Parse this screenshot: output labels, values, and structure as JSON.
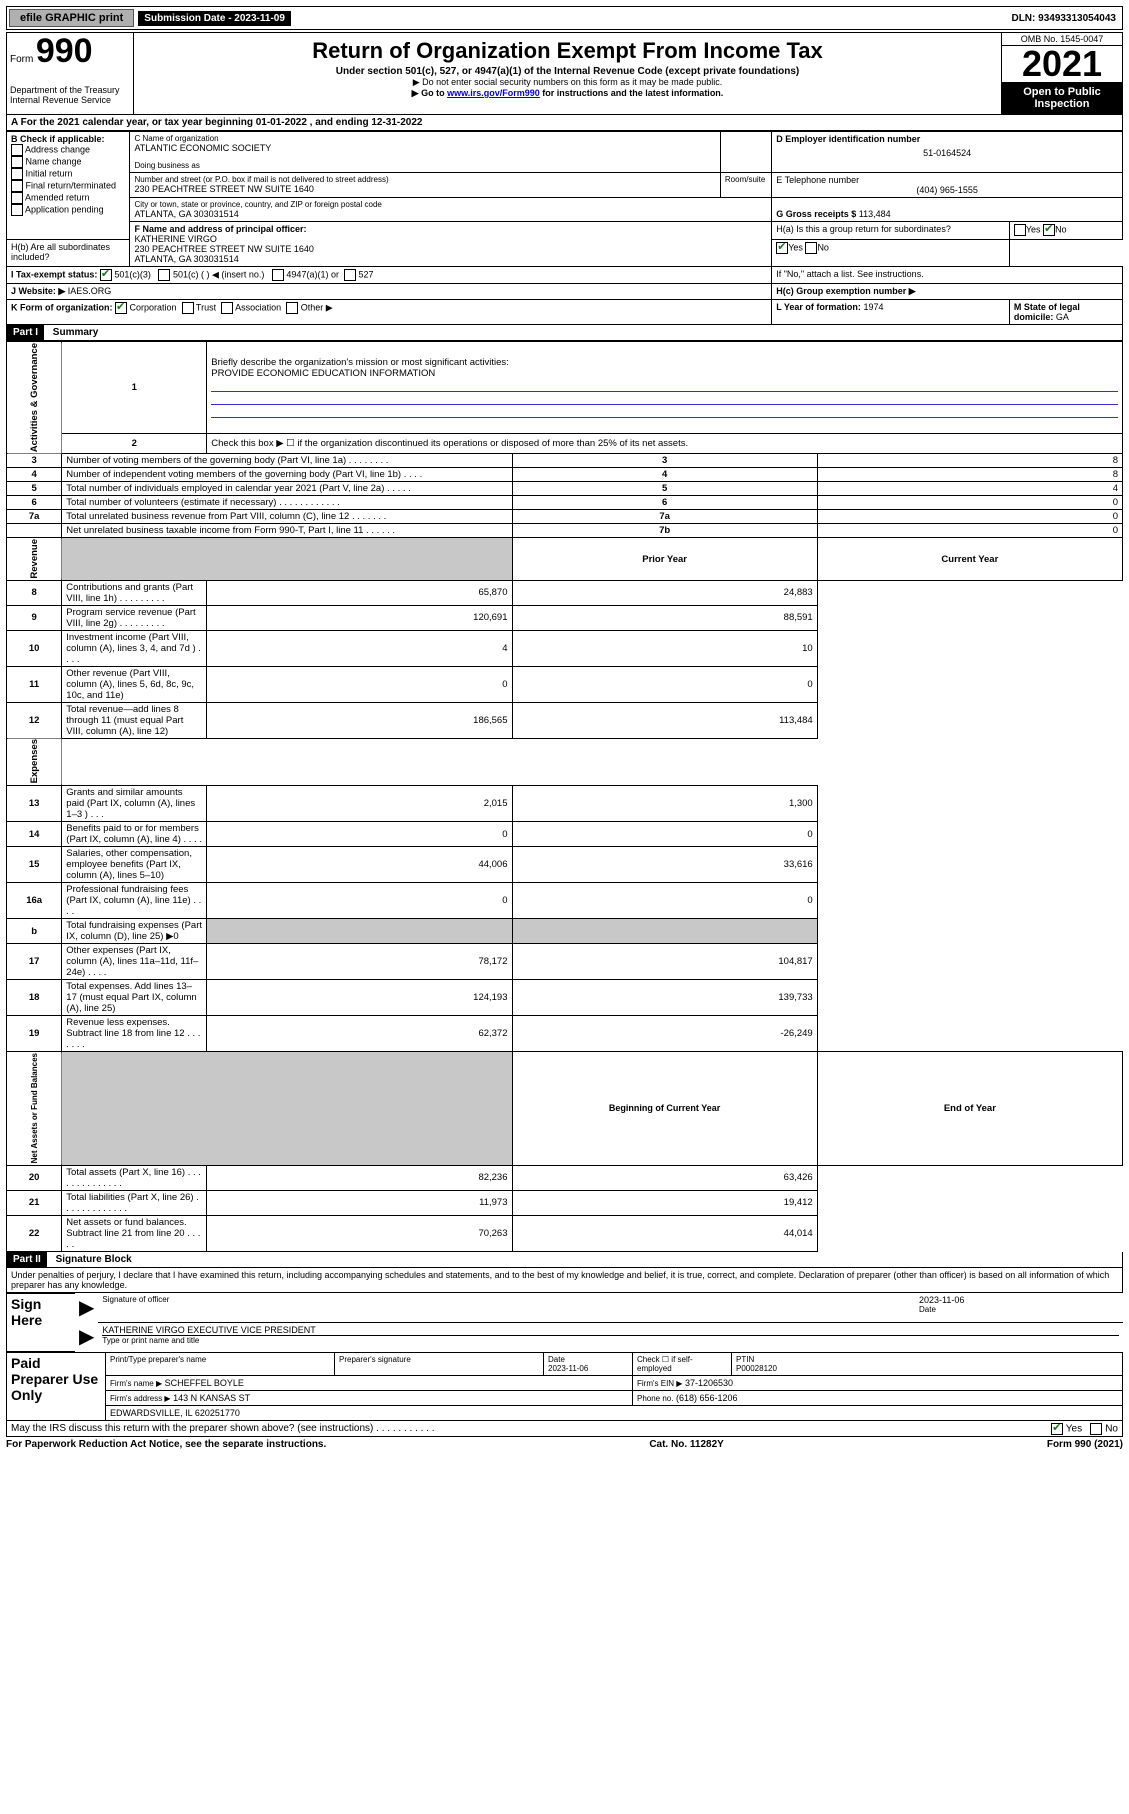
{
  "topbar": {
    "efile": "efile GRAPHIC print",
    "submission_label": "Submission Date - 2023-11-09",
    "dln": "DLN: 93493313054043"
  },
  "header": {
    "form_word": "Form",
    "form_num": "990",
    "dept": "Department of the Treasury",
    "irs": "Internal Revenue Service",
    "title": "Return of Organization Exempt From Income Tax",
    "sub": "Under section 501(c), 527, or 4947(a)(1) of the Internal Revenue Code (except private foundations)",
    "ssn": "▶ Do not enter social security numbers on this form as it may be made public.",
    "goto_pre": "▶ Go to ",
    "goto_link": "www.irs.gov/Form990",
    "goto_post": " for instructions and the latest information.",
    "omb": "OMB No. 1545-0047",
    "year": "2021",
    "open": "Open to Public Inspection"
  },
  "lineA": "For the 2021 calendar year, or tax year beginning 01-01-2022 , and ending 12-31-2022",
  "boxB": {
    "label": "B Check if applicable:",
    "opts": [
      "Address change",
      "Name change",
      "Initial return",
      "Final return/terminated",
      "Amended return",
      "Application pending"
    ]
  },
  "boxC": {
    "name_label": "C Name of organization",
    "name": "ATLANTIC ECONOMIC SOCIETY",
    "dba_label": "Doing business as",
    "addr_label": "Number and street (or P.O. box if mail is not delivered to street address)",
    "room_label": "Room/suite",
    "addr": "230 PEACHTREE STREET NW SUITE 1640",
    "city_label": "City or town, state or province, country, and ZIP or foreign postal code",
    "city": "ATLANTA, GA  303031514"
  },
  "boxD": {
    "label": "D Employer identification number",
    "value": "51-0164524"
  },
  "boxE": {
    "label": "E Telephone number",
    "value": "(404) 965-1555"
  },
  "boxG": {
    "label": "G Gross receipts $",
    "value": "113,484"
  },
  "boxF": {
    "label": "F Name and address of principal officer:",
    "name": "KATHERINE VIRGO",
    "addr1": "230 PEACHTREE STREET NW SUITE 1640",
    "addr2": "ATLANTA, GA  303031514"
  },
  "boxH": {
    "a": "H(a) Is this a group return for subordinates?",
    "a_yes": "Yes",
    "a_no": "No",
    "b": "H(b) Are all subordinates included?",
    "b_note": "If \"No,\" attach a list. See instructions.",
    "c": "H(c) Group exemption number ▶"
  },
  "boxI": {
    "label": "I    Tax-exempt status:",
    "c3": "501(c)(3)",
    "c": "501(c) (    ) ◀ (insert no.)",
    "a1": "4947(a)(1) or",
    "s527": "527"
  },
  "boxJ": {
    "label": "J    Website: ▶",
    "value": "IAES.ORG"
  },
  "boxK": {
    "label": "K Form of organization:",
    "opts": [
      "Corporation",
      "Trust",
      "Association",
      "Other ▶"
    ]
  },
  "boxL": {
    "label": "L Year of formation:",
    "value": "1974"
  },
  "boxM": {
    "label": "M State of legal domicile:",
    "value": "GA"
  },
  "partI": {
    "head": "Part I",
    "title": "Summary",
    "q1": "Briefly describe the organization's mission or most significant activities:",
    "q1_val": "PROVIDE ECONOMIC EDUCATION INFORMATION",
    "q2": "Check this box ▶ ☐ if the organization discontinued its operations or disposed of more than 25% of its net assets.",
    "gov_label": "Activities & Governance",
    "rev_label": "Revenue",
    "exp_label": "Expenses",
    "net_label": "Net Assets or Fund Balances",
    "col_prior": "Prior Year",
    "col_curr": "Current Year",
    "col_boy": "Beginning of Current Year",
    "col_eoy": "End of Year",
    "rows_gov": [
      {
        "n": "3",
        "desc": "Number of voting members of the governing body (Part VI, line 1a)  .    .    .    .    .    .    .    .",
        "num": "3",
        "v": "8"
      },
      {
        "n": "4",
        "desc": "Number of independent voting members of the governing body (Part VI, line 1b)   .    .    .    .",
        "num": "4",
        "v": "8"
      },
      {
        "n": "5",
        "desc": "Total number of individuals employed in calendar year 2021 (Part V, line 2a)    .    .    .    .    .",
        "num": "5",
        "v": "4"
      },
      {
        "n": "6",
        "desc": "Total number of volunteers (estimate if necessary)   .    .    .    .    .    .    .    .    .    .    .    .",
        "num": "6",
        "v": "0"
      },
      {
        "n": "7a",
        "desc": "Total unrelated business revenue from Part VIII, column (C), line 12   .    .    .    .    .    .    .",
        "num": "7a",
        "v": "0"
      },
      {
        "n": "",
        "desc": "Net unrelated business taxable income from Form 990-T, Part I, line 11   .    .    .    .    .    .",
        "num": "7b",
        "v": "0"
      }
    ],
    "rows_rev": [
      {
        "n": "8",
        "desc": "Contributions and grants (Part VIII, line 1h)    .    .    .    .    .    .    .    .    .",
        "p": "65,870",
        "c": "24,883",
        "shade": false
      },
      {
        "n": "9",
        "desc": "Program service revenue (Part VIII, line 2g)   .    .    .    .    .    .    .    .    .",
        "p": "120,691",
        "c": "88,591",
        "shade": false
      },
      {
        "n": "10",
        "desc": "Investment income (Part VIII, column (A), lines 3, 4, and 7d )    .    .    .    .",
        "p": "4",
        "c": "10",
        "shade": false
      },
      {
        "n": "11",
        "desc": "Other revenue (Part VIII, column (A), lines 5, 6d, 8c, 9c, 10c, and 11e)",
        "p": "0",
        "c": "0",
        "shade": false
      },
      {
        "n": "12",
        "desc": "Total revenue—add lines 8 through 11 (must equal Part VIII, column (A), line 12)",
        "p": "186,565",
        "c": "113,484",
        "shade": false
      }
    ],
    "rows_exp": [
      {
        "n": "13",
        "desc": "Grants and similar amounts paid (Part IX, column (A), lines 1–3 )   .    .    .",
        "p": "2,015",
        "c": "1,300"
      },
      {
        "n": "14",
        "desc": "Benefits paid to or for members (Part IX, column (A), line 4)   .    .    .    .",
        "p": "0",
        "c": "0"
      },
      {
        "n": "15",
        "desc": "Salaries, other compensation, employee benefits (Part IX, column (A), lines 5–10)",
        "p": "44,006",
        "c": "33,616"
      },
      {
        "n": "16a",
        "desc": "Professional fundraising fees (Part IX, column (A), line 11e)   .    .    .    .",
        "p": "0",
        "c": "0"
      },
      {
        "n": "b",
        "desc": "Total fundraising expenses (Part IX, column (D), line 25) ▶0",
        "p": "",
        "c": "",
        "shade": true
      },
      {
        "n": "17",
        "desc": "Other expenses (Part IX, column (A), lines 11a–11d, 11f–24e)   .    .    .    .",
        "p": "78,172",
        "c": "104,817"
      },
      {
        "n": "18",
        "desc": "Total expenses. Add lines 13–17 (must equal Part IX, column (A), line 25)",
        "p": "124,193",
        "c": "139,733"
      },
      {
        "n": "19",
        "desc": "Revenue less expenses. Subtract line 18 from line 12   .    .    .    .    .    .    .",
        "p": "62,372",
        "c": "-26,249"
      }
    ],
    "rows_net": [
      {
        "n": "20",
        "desc": "Total assets (Part X, line 16)   .    .    .    .    .    .    .    .    .    .    .    .    .    .",
        "p": "82,236",
        "c": "63,426"
      },
      {
        "n": "21",
        "desc": "Total liabilities (Part X, line 26)   .    .    .    .    .    .    .    .    .    .    .    .    .",
        "p": "11,973",
        "c": "19,412"
      },
      {
        "n": "22",
        "desc": "Net assets or fund balances. Subtract line 21 from line 20   .    .    .    .    .",
        "p": "70,263",
        "c": "44,014"
      }
    ]
  },
  "partII": {
    "head": "Part II",
    "title": "Signature Block",
    "jur": "Under penalties of perjury, I declare that I have examined this return, including accompanying schedules and statements, and to the best of my knowledge and belief, it is true, correct, and complete. Declaration of preparer (other than officer) is based on all information of which preparer has any knowledge."
  },
  "sign": {
    "here": "Sign Here",
    "sig_label": "Signature of officer",
    "date_label": "Date",
    "date": "2023-11-06",
    "name": "KATHERINE VIRGO  EXECUTIVE VICE PRESIDENT",
    "name_label": "Type or print name and title"
  },
  "paid": {
    "label": "Paid Preparer Use Only",
    "col1": "Print/Type preparer's name",
    "col2": "Preparer's signature",
    "col3_l": "Date",
    "col3_v": "2023-11-06",
    "col4": "Check ☐ if self-employed",
    "col5_l": "PTIN",
    "col5_v": "P00028120",
    "firm_l": "Firm's name    ▶",
    "firm_v": "SCHEFFEL BOYLE",
    "ein_l": "Firm's EIN ▶",
    "ein_v": "37-1206530",
    "addr_l": "Firm's address ▶",
    "addr_v": "143 N KANSAS ST",
    "addr2": "EDWARDSVILLE, IL  620251770",
    "phone_l": "Phone no.",
    "phone_v": "(618) 656-1206"
  },
  "discuss": {
    "q": "May the IRS discuss this return with the preparer shown above? (see instructions)   .    .    .    .    .    .    .    .    .    .    .",
    "yes": "Yes",
    "no": "No"
  },
  "footer": {
    "left": "For Paperwork Reduction Act Notice, see the separate instructions.",
    "mid": "Cat. No. 11282Y",
    "right": "Form 990 (2021)"
  }
}
